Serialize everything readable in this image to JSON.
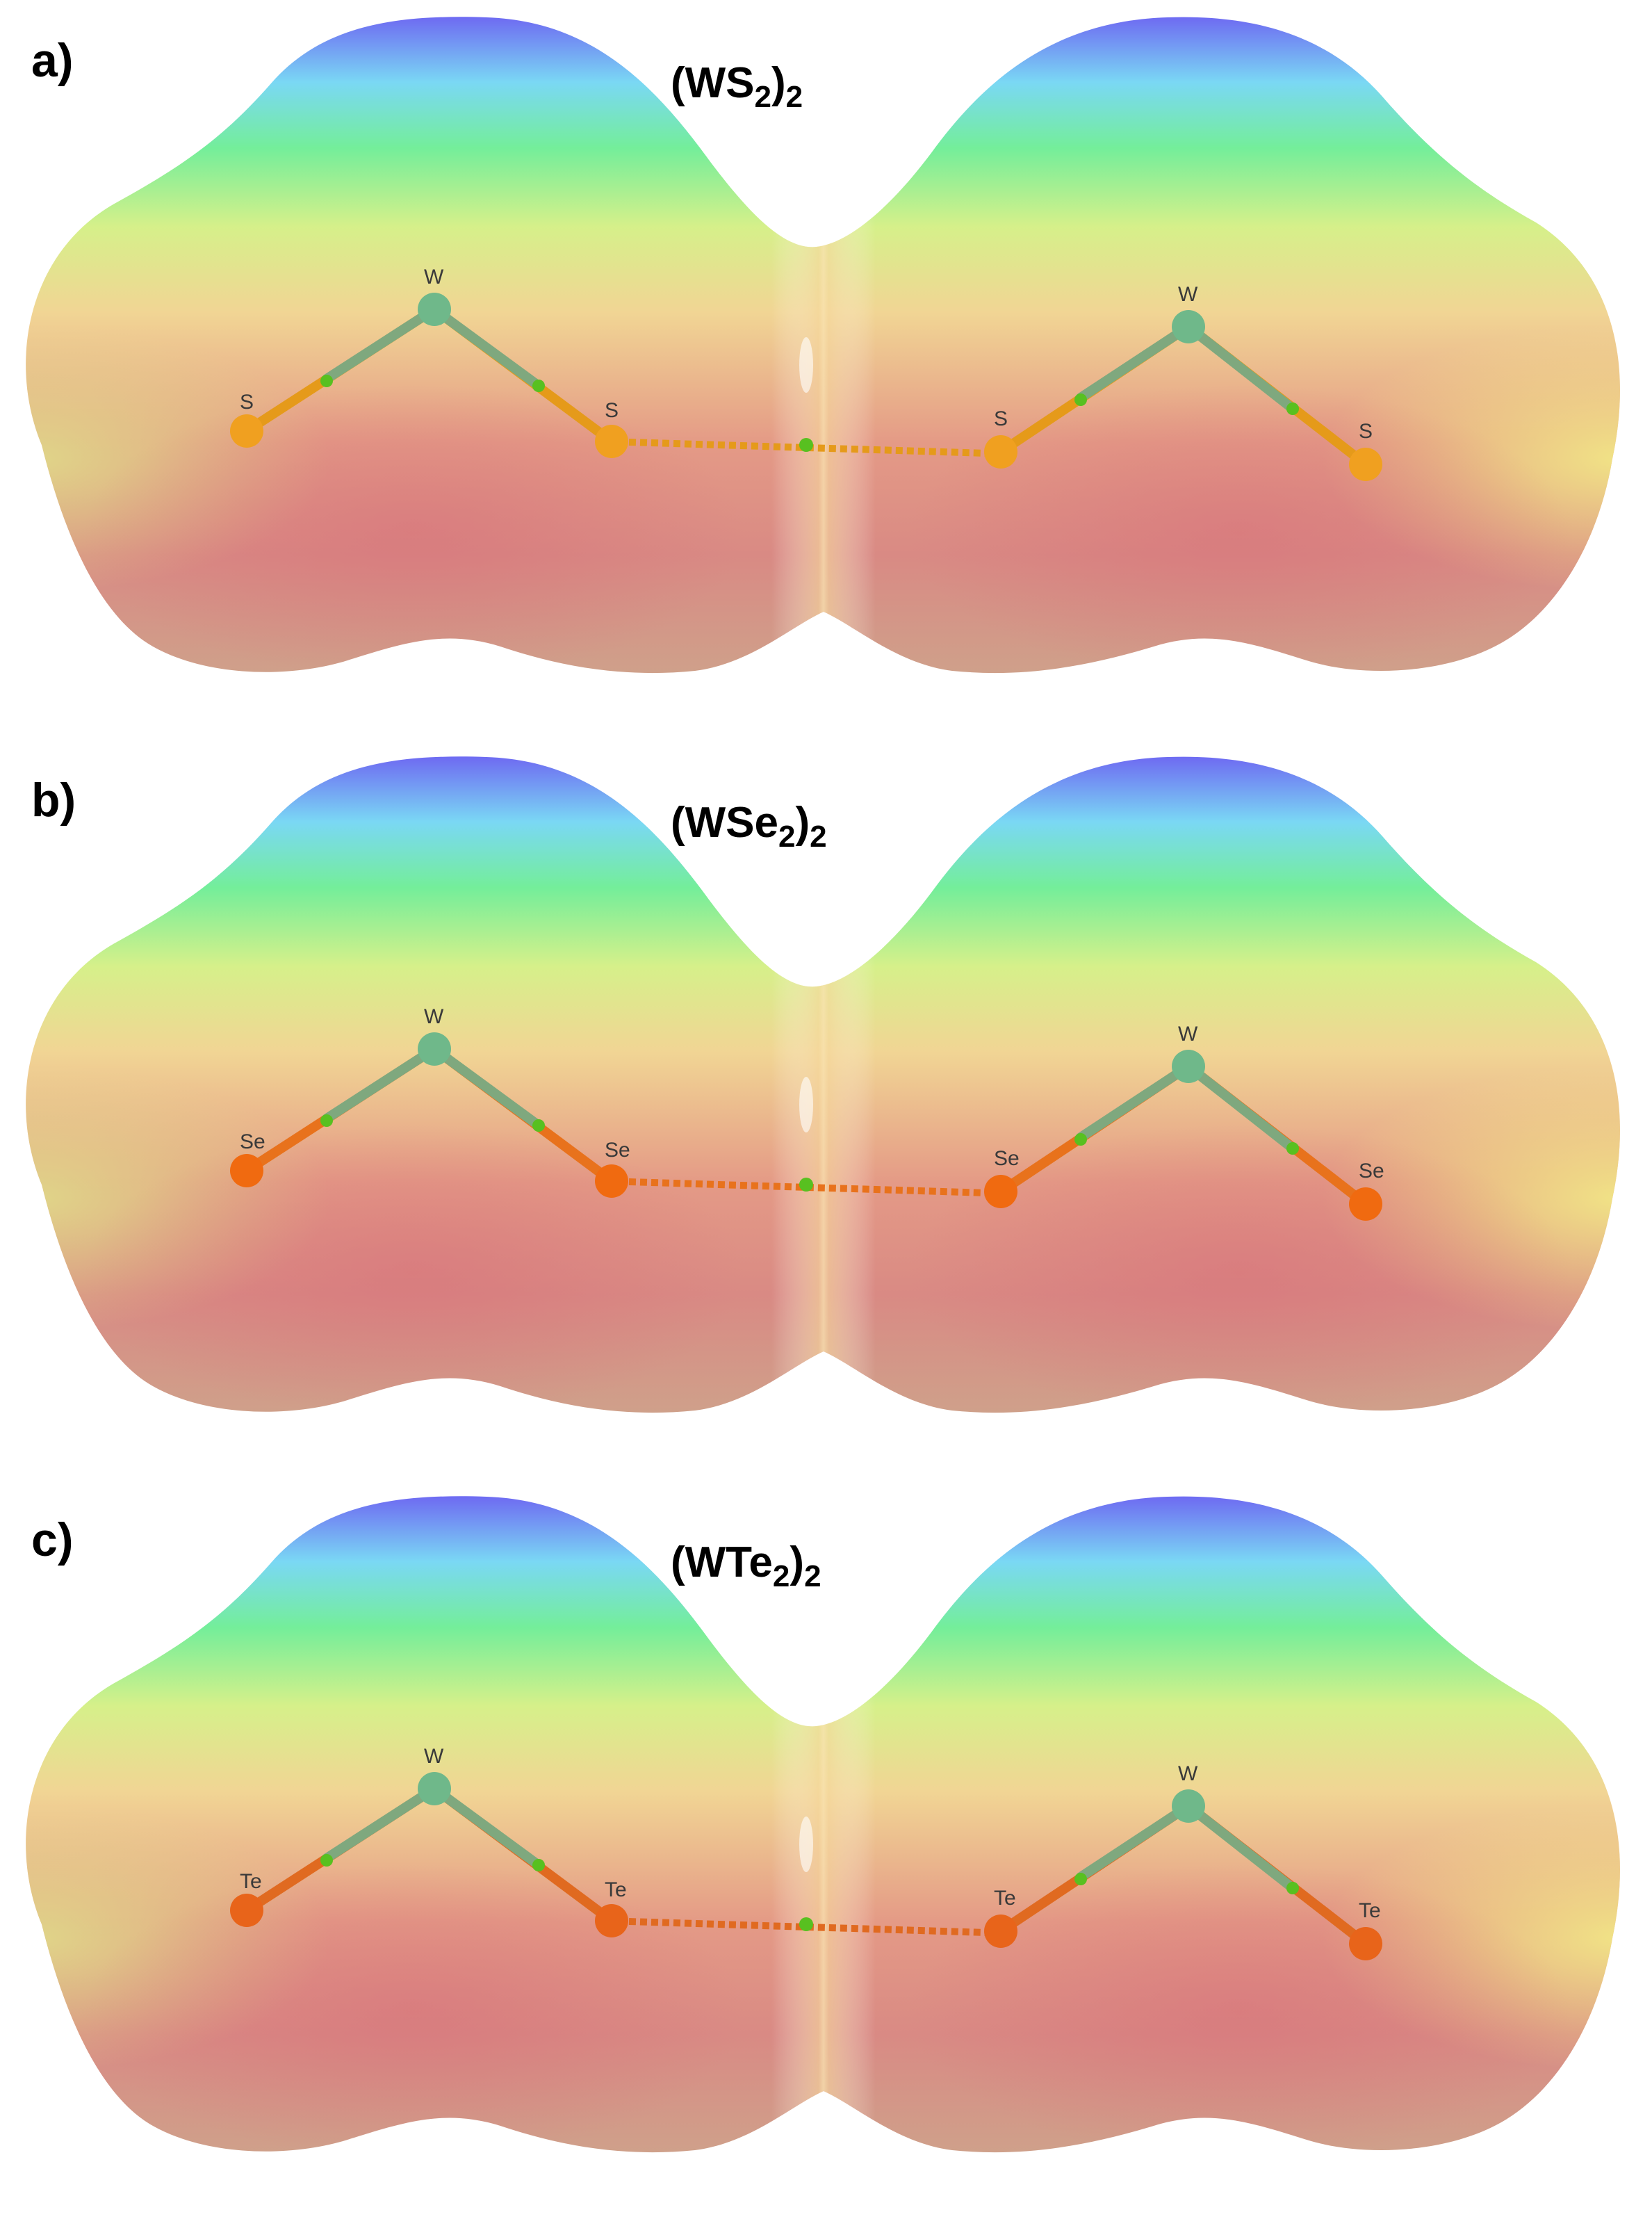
{
  "panels": [
    {
      "label": "a)",
      "title_main": "(WS",
      "title_sub1": "2",
      "title_close": ")",
      "title_sub2": "2",
      "atoms": {
        "left_x1": "S",
        "left_w": "W",
        "left_x2": "S",
        "right_x1": "S",
        "right_w": "W",
        "right_x2": "S"
      },
      "atom_color": "#f0a020",
      "bond_color": "#e59a1a"
    },
    {
      "label": "b)",
      "title_main": "(WSe",
      "title_sub1": "2",
      "title_close": ")",
      "title_sub2": "2",
      "atoms": {
        "left_x1": "Se",
        "left_w": "W",
        "left_x2": "Se",
        "right_x1": "Se",
        "right_w": "W",
        "right_x2": "Se"
      },
      "atom_color": "#f06a10",
      "bond_color": "#e8721c"
    },
    {
      "label": "c)",
      "title_main": "(WTe",
      "title_sub1": "2",
      "title_close": ")",
      "title_sub2": "2",
      "atoms": {
        "left_x1": "Te",
        "left_w": "W",
        "left_x2": "Te",
        "right_x1": "Te",
        "right_w": "W",
        "right_x2": "Te"
      },
      "atom_color": "#e8641a",
      "bond_color": "#e06a20"
    }
  ],
  "colors": {
    "w_atom": "#6fb88a",
    "bcp": "#58c020",
    "surface_positive": "#6a6cf0",
    "surface_negative": "#e07a7a"
  }
}
